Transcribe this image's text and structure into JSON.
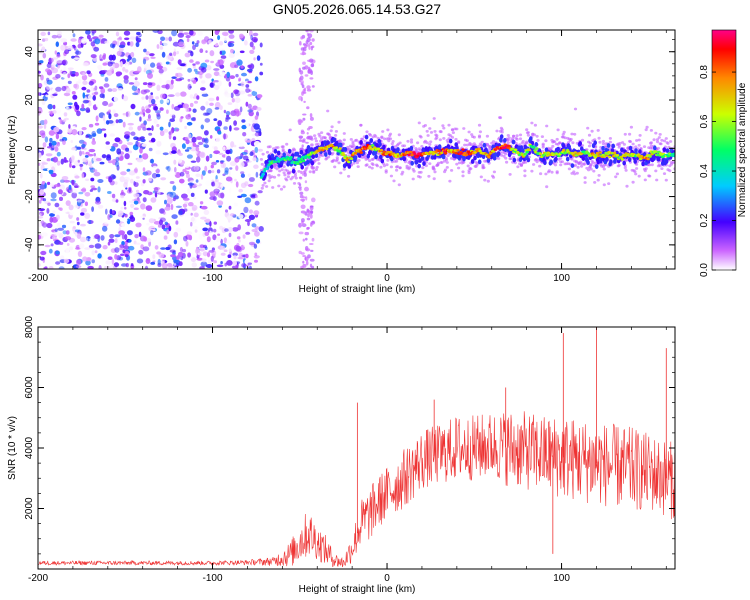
{
  "figure": {
    "title": "GN05.2026.065.14.53.G27"
  },
  "colors": {
    "snr_line": "#ee3333",
    "frame": "#000000",
    "background": "#ffffff"
  },
  "chart_data": [
    {
      "type": "heatmap",
      "name": "spectrogram",
      "xlabel": "Height of straight line (km)",
      "ylabel": "Frequency (Hz)",
      "xlim": [
        -200,
        165
      ],
      "ylim": [
        -50,
        49
      ],
      "xticks": [
        -200,
        -100,
        0,
        100
      ],
      "yticks": [
        -40,
        -20,
        0,
        20,
        40
      ],
      "colorbar": {
        "label": "Normalized spectral amplitude",
        "range": [
          0,
          0.97
        ],
        "ticks": [
          "0.0",
          "0.2",
          "0.4",
          "0.6",
          "0.8"
        ]
      },
      "noise_region_x": [
        -200,
        -72
      ],
      "scattered_column_x": [
        -50,
        -42
      ],
      "ridge": {
        "x": [
          -72,
          -67,
          -62,
          -57,
          -52,
          -47,
          -42,
          -37,
          -32,
          -27,
          -22,
          -17,
          -12,
          -7,
          -2,
          3,
          8,
          13,
          18,
          23,
          28,
          33,
          38,
          43,
          48,
          53,
          58,
          63,
          68,
          73,
          78,
          83,
          88,
          93,
          98,
          103,
          108,
          113,
          118,
          123,
          128,
          133,
          138,
          143,
          148,
          153,
          158,
          163
        ],
        "freq": [
          -12,
          -6,
          -5,
          -4,
          -6,
          -4,
          -2,
          0,
          1,
          -1,
          -5,
          -1,
          0,
          0,
          -2,
          -2,
          -3,
          -2,
          -3,
          -2,
          -2,
          -1,
          -1,
          -2,
          -2,
          -1,
          -3,
          0,
          1,
          -1,
          -3,
          1,
          -3,
          -2,
          -3,
          -1,
          -3,
          -2,
          -3,
          -3,
          -2,
          -4,
          -3,
          -3,
          -4,
          -2,
          -3,
          -3
        ],
        "amplitude": [
          0.35,
          0.45,
          0.4,
          0.5,
          0.45,
          0.5,
          0.55,
          0.75,
          0.8,
          0.6,
          0.7,
          0.75,
          0.9,
          0.6,
          0.85,
          0.8,
          0.7,
          0.9,
          0.95,
          0.75,
          0.7,
          0.85,
          0.75,
          0.9,
          0.8,
          0.75,
          0.7,
          0.85,
          0.95,
          0.6,
          0.65,
          0.55,
          0.6,
          0.7,
          0.55,
          0.65,
          0.7,
          0.6,
          0.75,
          0.65,
          0.7,
          0.6,
          0.65,
          0.55,
          0.8,
          0.6,
          0.55,
          0.5
        ]
      }
    },
    {
      "type": "line",
      "name": "snr",
      "xlabel": "Height of straight line (km)",
      "ylabel": "SNR (10 * v/v)",
      "xlim": [
        -200,
        165
      ],
      "ylim": [
        0,
        8000
      ],
      "xticks": [
        -200,
        -100,
        0,
        100
      ],
      "yticks": [
        2000,
        4000,
        6000,
        8000
      ],
      "series": [
        {
          "name": "SNR",
          "color": "#ee3333",
          "x": [
            -200,
            -150,
            -100,
            -80,
            -65,
            -55,
            -50,
            -45,
            -40,
            -35,
            -30,
            -25,
            -20,
            -15,
            -10,
            -5,
            0,
            10,
            20,
            30,
            40,
            50,
            60,
            70,
            80,
            90,
            100,
            110,
            120,
            130,
            140,
            150,
            160,
            165
          ],
          "y": [
            200,
            200,
            200,
            220,
            250,
            500,
            900,
            1200,
            900,
            600,
            300,
            200,
            700,
            1500,
            1800,
            2200,
            2500,
            3000,
            3600,
            3800,
            4000,
            4000,
            4100,
            4000,
            3900,
            3800,
            3700,
            3600,
            3500,
            3400,
            3300,
            3200,
            3000,
            2900
          ],
          "noise": [
            70,
            70,
            70,
            80,
            150,
            450,
            700,
            800,
            600,
            500,
            250,
            200,
            500,
            800,
            900,
            900,
            900,
            1000,
            1000,
            1000,
            1100,
            1100,
            1100,
            1300,
            1300,
            1300,
            1400,
            1400,
            1400,
            1400,
            1400,
            1300,
            1300,
            1300
          ]
        }
      ],
      "spikes": [
        {
          "x": -17,
          "y": 5500
        },
        {
          "x": 27,
          "y": 5600
        },
        {
          "x": 68,
          "y": 6000
        },
        {
          "x": 101,
          "y": 7800
        },
        {
          "x": 120,
          "y": 8000
        },
        {
          "x": 160,
          "y": 7300
        },
        {
          "x": 95,
          "y": 500
        }
      ]
    }
  ]
}
